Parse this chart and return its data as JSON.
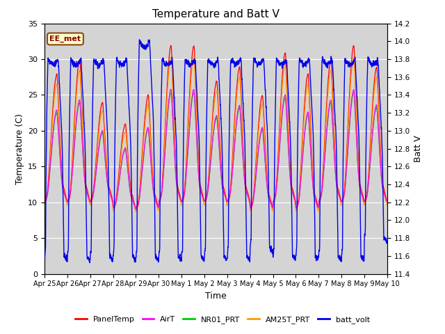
{
  "title": "Temperature and Batt V",
  "xlabel": "Time",
  "ylabel_left": "Temperature (C)",
  "ylabel_right": "Batt V",
  "annotation": "EE_met",
  "ylim_left": [
    0,
    35
  ],
  "ylim_right": [
    11.4,
    14.2
  ],
  "yticks_left": [
    0,
    5,
    10,
    15,
    20,
    25,
    30,
    35
  ],
  "yticks_right": [
    11.4,
    11.6,
    11.8,
    12.0,
    12.2,
    12.4,
    12.6,
    12.8,
    13.0,
    13.2,
    13.4,
    13.6,
    13.8,
    14.0,
    14.2
  ],
  "xtick_labels": [
    "Apr 25",
    "Apr 26",
    "Apr 27",
    "Apr 28",
    "Apr 29",
    "Apr 30",
    "May 1",
    "May 2",
    "May 3",
    "May 4",
    "May 5",
    "May 6",
    "May 7",
    "May 8",
    "May 9",
    "May 10"
  ],
  "n_days": 15,
  "plot_bg": "#d4d4d4",
  "legend_entries": [
    {
      "label": "PanelTemp",
      "color": "#ff0000"
    },
    {
      "label": "AirT",
      "color": "#ff00ff"
    },
    {
      "label": "NR01_PRT",
      "color": "#00cc00"
    },
    {
      "label": "AM25T_PRT",
      "color": "#ff9900"
    },
    {
      "label": "batt_volt",
      "color": "#0000ee"
    }
  ],
  "day_peak_temps": [
    28,
    30,
    24,
    21,
    25,
    32,
    32,
    27,
    29,
    25,
    31,
    28,
    30,
    32,
    29
  ],
  "day_min_temps": [
    10,
    10,
    10,
    9,
    9,
    10,
    10,
    10,
    10,
    9,
    10,
    9,
    10,
    10,
    10
  ],
  "batt_day_max": [
    13.8,
    13.8,
    13.8,
    13.8,
    14.0,
    13.8,
    13.8,
    13.8,
    13.8,
    13.8,
    13.8,
    13.8,
    13.8,
    13.8,
    13.8
  ],
  "batt_night_min": [
    11.6,
    11.6,
    11.6,
    11.6,
    11.6,
    11.6,
    11.6,
    11.6,
    11.6,
    11.7,
    11.6,
    11.6,
    11.6,
    11.6,
    11.8
  ],
  "pts_per_day": 288
}
